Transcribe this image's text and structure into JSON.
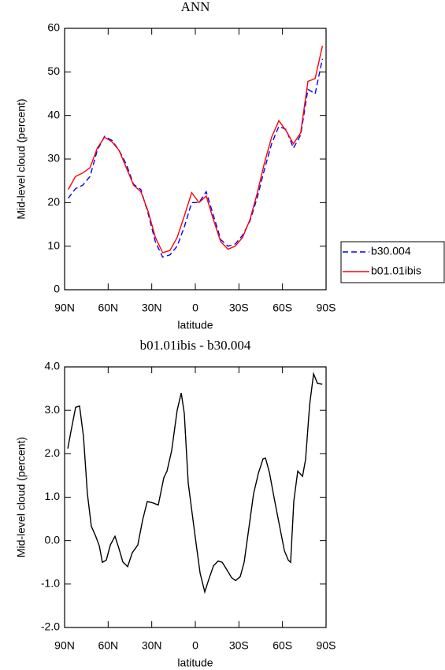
{
  "chart_data": [
    {
      "type": "line",
      "title": "ANN",
      "xlabel": "latitude",
      "ylabel": "Mid-level cloud (percent)",
      "x": [
        87.5,
        82.5,
        77.5,
        72.5,
        67.5,
        62.5,
        57.5,
        52.5,
        47.5,
        42.5,
        37.5,
        32.5,
        27.5,
        22.5,
        17.5,
        12.5,
        7.5,
        2.5,
        -2.5,
        -7.5,
        -12.5,
        -17.5,
        -22.5,
        -27.5,
        -32.5,
        -37.5,
        -42.5,
        -47.5,
        -52.5,
        -57.5,
        -62.5,
        -67.5,
        -72.5,
        -77.5,
        -82.5,
        -87.5
      ],
      "series": [
        {
          "name": "b30.004",
          "color": "#0000ff",
          "dashed": true,
          "values": [
            21,
            23.2,
            24,
            26,
            32,
            35.2,
            34.3,
            32,
            28.8,
            24.2,
            23,
            17.5,
            11,
            7.5,
            8,
            10,
            14.5,
            20,
            20,
            22.5,
            17,
            11.5,
            10,
            10.5,
            12.5,
            15.7,
            21,
            27.5,
            33.5,
            37.5,
            36.8,
            32.5,
            35.5,
            46,
            45,
            53
          ]
        },
        {
          "name": "b01.01ibis",
          "color": "#ff0000",
          "dashed": false,
          "values": [
            23,
            26,
            26.8,
            28,
            32.5,
            35,
            34,
            32,
            28,
            24,
            22.5,
            18,
            12,
            8.5,
            9,
            12,
            17,
            22.3,
            20,
            21.5,
            16,
            11,
            9.3,
            10,
            12,
            16,
            22,
            29,
            35,
            38.8,
            36.5,
            33.5,
            36,
            47.8,
            48.5,
            56
          ]
        }
      ],
      "xlim": [
        90,
        -90
      ],
      "xticks": [
        {
          "value": 90,
          "label": "90N"
        },
        {
          "value": 60,
          "label": "60N"
        },
        {
          "value": 30,
          "label": "30N"
        },
        0,
        {
          "value": -30,
          "label": "30S"
        },
        {
          "value": -60,
          "label": "60S"
        },
        {
          "value": -90,
          "label": "90S"
        }
      ],
      "ylim": [
        0,
        60
      ],
      "yticks": [
        0,
        10,
        20,
        30,
        40,
        50,
        60
      ],
      "legend": "right"
    },
    {
      "type": "line",
      "title": "b01.01ibis - b30.004",
      "xlabel": "latitude",
      "ylabel": "Mid-level cloud (percent)",
      "x": [
        87.8,
        85.7,
        82.4,
        79.7,
        77,
        74.3,
        71.6,
        68.8,
        66.1,
        64,
        61.3,
        58.5,
        55.3,
        52.6,
        49.9,
        46.6,
        43.4,
        39.6,
        36.3,
        33.1,
        29.3,
        25.5,
        21.7,
        19.5,
        16.3,
        12.5,
        9.7,
        7.6,
        4.9,
        2.2,
        -0.5,
        -3.3,
        -6.5,
        -9.2,
        -12.5,
        -15.7,
        -18.5,
        -21.7,
        -24.9,
        -27.7,
        -30.9,
        -33.6,
        -37.4,
        -40.1,
        -43.4,
        -46.6,
        -48.3,
        -51,
        -54.2,
        -57.5,
        -61.3,
        -64,
        -65.6,
        -67.8,
        -70.5,
        -73.8,
        -75.9,
        -78.7,
        -81.4,
        -84.1,
        -87.4
      ],
      "series": [
        {
          "name": null,
          "color": "#000000",
          "dashed": false,
          "values": [
            2.12,
            2.5,
            3.07,
            3.1,
            2.4,
            1.08,
            0.33,
            0.12,
            -0.12,
            -0.5,
            -0.45,
            -0.1,
            0.1,
            -0.18,
            -0.49,
            -0.6,
            -0.28,
            -0.1,
            0.47,
            0.9,
            0.87,
            0.82,
            1.45,
            1.6,
            2.07,
            3.0,
            3.4,
            2.93,
            1.33,
            0.63,
            -0.06,
            -0.75,
            -1.18,
            -0.9,
            -0.58,
            -0.47,
            -0.5,
            -0.67,
            -0.85,
            -0.92,
            -0.83,
            -0.5,
            0.42,
            1.08,
            1.55,
            1.88,
            1.9,
            1.57,
            0.99,
            0.42,
            -0.23,
            -0.45,
            -0.5,
            0.91,
            1.6,
            1.48,
            1.87,
            3.13,
            3.84,
            3.62,
            3.6
          ]
        }
      ],
      "xlim": [
        90,
        -90
      ],
      "xticks": [
        {
          "value": 90,
          "label": "90N"
        },
        {
          "value": 60,
          "label": "60N"
        },
        {
          "value": 30,
          "label": "30N"
        },
        0,
        {
          "value": -30,
          "label": "30S"
        },
        {
          "value": -60,
          "label": "60S"
        },
        {
          "value": -90,
          "label": "90S"
        }
      ],
      "ylim": [
        -2,
        4
      ],
      "yticks": [
        {
          "value": -2,
          "label": "-2.0"
        },
        {
          "value": -1,
          "label": "-1.0"
        },
        {
          "value": 0,
          "label": "0.0"
        },
        {
          "value": 1,
          "label": "1.0"
        },
        {
          "value": 2,
          "label": "2.0"
        },
        {
          "value": 3,
          "label": "3.0"
        },
        {
          "value": 4,
          "label": "4.0"
        }
      ]
    }
  ]
}
